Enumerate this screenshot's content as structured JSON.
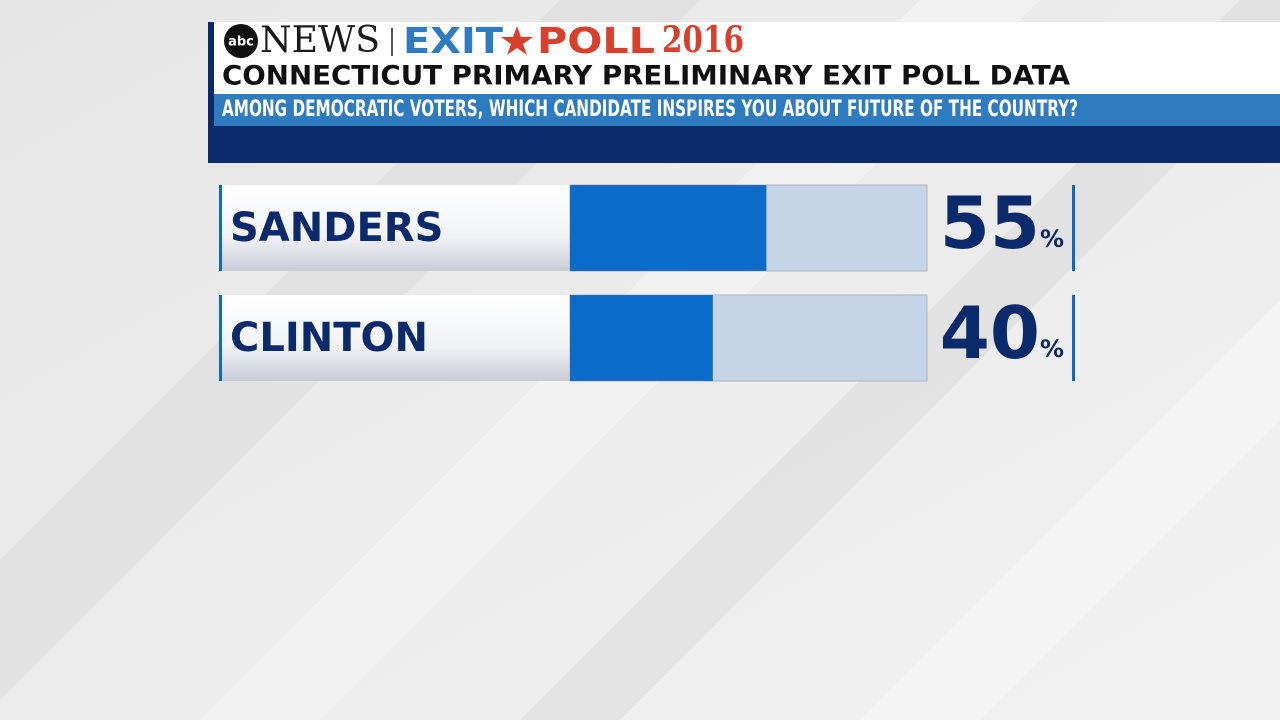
{
  "branding": {
    "logo": "abc",
    "network": "NEWS",
    "exit": "EXIT",
    "poll": "POLL",
    "year": "2016"
  },
  "chart_data": {
    "type": "bar",
    "orientation": "horizontal",
    "title": "CONNECTICUT PRIMARY PRELIMINARY EXIT POLL DATA",
    "subtitle": "AMONG DEMOCRATIC VOTERS, WHICH CANDIDATE INSPIRES YOU ABOUT FUTURE OF THE COUNTRY?",
    "categories": [
      "SANDERS",
      "CLINTON"
    ],
    "values": [
      55,
      40
    ],
    "value_labels": [
      "55%",
      "40%"
    ],
    "color": "#0a6bc9",
    "xlim": [
      0,
      100
    ]
  }
}
